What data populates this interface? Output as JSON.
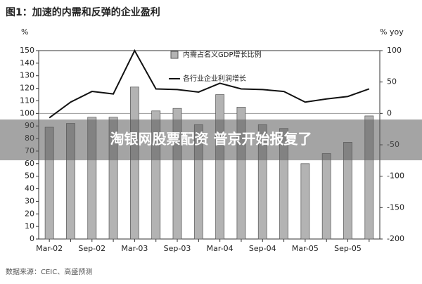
{
  "chart_data": {
    "type": "bar_line",
    "title": "图1：加速的内需和反弹的企业盈利",
    "y_label": "%",
    "y2_label": "% yoy",
    "source": "数据来源：CEIC、高盛预测",
    "categories": [
      "Mar-02",
      null,
      "Sep-02",
      null,
      "Mar-03",
      null,
      "Sep-03",
      null,
      "Mar-04",
      null,
      "Sep-04",
      null,
      "Mar-05",
      null,
      "Sep-05",
      null
    ],
    "series": [
      {
        "name": "内需占名义GDP增长比例",
        "type": "bar",
        "color": "#b3b3b3",
        "values": [
          89,
          92,
          97,
          97,
          121,
          102,
          104,
          91,
          115,
          105,
          91,
          88,
          60,
          68,
          77,
          98
        ]
      },
      {
        "name": "各行业企业利润增长",
        "type": "line",
        "axis": "y2",
        "color": "#111111",
        "values": [
          -7,
          18,
          35,
          31,
          100,
          39,
          38,
          34,
          48,
          39,
          38,
          35,
          18,
          23,
          27,
          39
        ]
      }
    ],
    "ylim": [
      0,
      150
    ],
    "yticks": [
      0,
      10,
      20,
      30,
      40,
      50,
      60,
      70,
      80,
      90,
      100,
      110,
      120,
      130,
      140,
      150
    ],
    "y2lim": [
      -200,
      100
    ],
    "y2ticks": [
      -200,
      -150,
      -100,
      -50,
      0,
      50,
      100
    ],
    "grid": false
  },
  "overlay_text": "淘银网股票配资 普京开始报复了"
}
